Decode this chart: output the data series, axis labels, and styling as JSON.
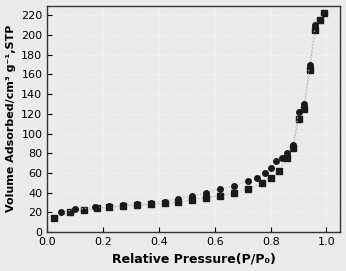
{
  "adsorption_x": [
    0.025,
    0.08,
    0.13,
    0.18,
    0.22,
    0.27,
    0.32,
    0.37,
    0.42,
    0.47,
    0.52,
    0.57,
    0.62,
    0.67,
    0.72,
    0.77,
    0.8,
    0.83,
    0.86,
    0.88,
    0.9,
    0.92,
    0.94,
    0.96,
    0.975,
    0.99
  ],
  "adsorption_y": [
    14,
    20,
    22,
    24,
    25,
    26,
    27,
    28,
    29,
    30,
    33,
    35,
    37,
    40,
    44,
    50,
    55,
    62,
    75,
    85,
    115,
    125,
    165,
    205,
    215,
    222
  ],
  "desorption_x": [
    0.99,
    0.975,
    0.96,
    0.94,
    0.92,
    0.9,
    0.88,
    0.86,
    0.84,
    0.82,
    0.8,
    0.78,
    0.75,
    0.72,
    0.67,
    0.62,
    0.57,
    0.52,
    0.47,
    0.42,
    0.37,
    0.32,
    0.27,
    0.22,
    0.17,
    0.1,
    0.05
  ],
  "desorption_y": [
    222,
    215,
    210,
    170,
    130,
    122,
    88,
    80,
    75,
    72,
    65,
    60,
    55,
    52,
    47,
    44,
    40,
    37,
    34,
    31,
    29,
    28,
    27,
    26,
    25,
    23,
    20
  ],
  "xlabel": "Relative Pressure(P/P₀)",
  "ylabel": "Volume Adsorbed/cm³ g⁻¹,STP",
  "xlim": [
    0.0,
    1.05
  ],
  "ylim": [
    0,
    230
  ],
  "yticks": [
    0,
    20,
    40,
    60,
    80,
    100,
    120,
    140,
    160,
    180,
    200,
    220
  ],
  "xticks": [
    0.0,
    0.2,
    0.4,
    0.6,
    0.8,
    1.0
  ],
  "adsorption_marker": "s",
  "desorption_marker": "o",
  "marker_color": "#1a1a1a",
  "line_color": "#bbbbbb",
  "background_color": "#ebebeb",
  "grid_color": "#ffffff",
  "marker_size": 4,
  "line_style": ":"
}
